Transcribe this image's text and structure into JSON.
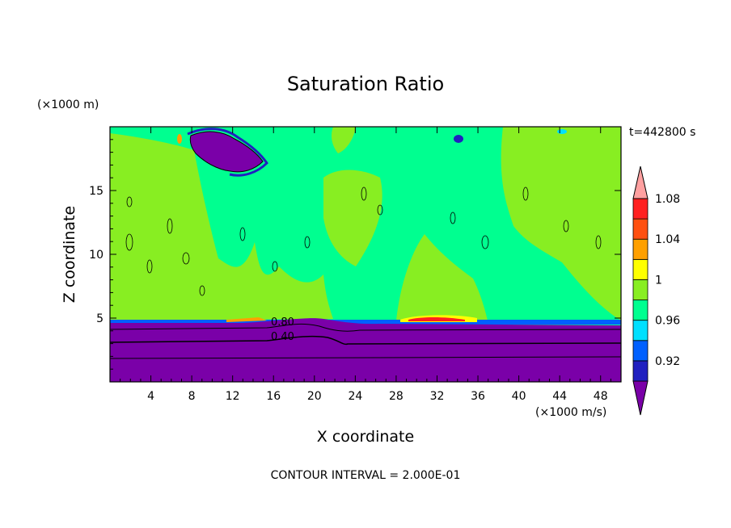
{
  "chart_data": {
    "type": "heatmap",
    "title": "Saturation Ratio",
    "xlabel": "X coordinate",
    "ylabel": "Z coordinate",
    "x_unit": "(×1000 m/s)",
    "y_unit": "(×1000 m)",
    "time_label": "t=442800 s",
    "footer": "CONTOUR INTERVAL = 2.000E-01",
    "xlim": [
      0,
      50
    ],
    "ylim": [
      0,
      20
    ],
    "x_ticks": [
      4,
      8,
      12,
      16,
      20,
      24,
      28,
      32,
      36,
      40,
      44,
      48
    ],
    "y_ticks": [
      5,
      10,
      15
    ],
    "contour_labels": [
      {
        "text": "0.80",
        "x": 17.5,
        "y": 4.6
      },
      {
        "text": "0.40",
        "x": 17.5,
        "y": 3.4
      }
    ],
    "colorbar": {
      "colors": [
        "#7a00a8",
        "#2020c0",
        "#0060ff",
        "#00e0ff",
        "#00ff90",
        "#88ee22",
        "#ffff00",
        "#ffa000",
        "#ff5010",
        "#ff2020",
        "#ffa0a0"
      ],
      "tick_labels": [
        "0.92",
        "0.96",
        "1",
        "1.04",
        "1.08"
      ]
    },
    "regions": {
      "purple": "#7a00a8",
      "green": "#00ff90",
      "lime": "#88ee22",
      "orange": "#ffa000",
      "yellow": "#ffff00",
      "red": "#ff2020",
      "blue": "#0060ff"
    }
  }
}
